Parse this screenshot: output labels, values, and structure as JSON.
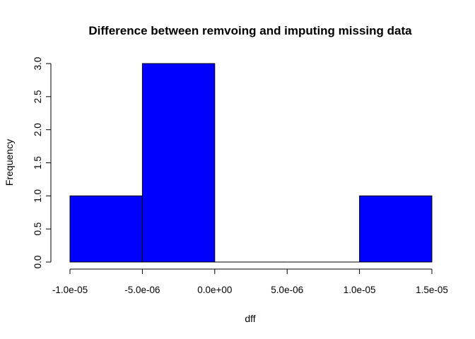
{
  "chart_data": {
    "type": "bar",
    "title": "Difference between remvoing and imputing missing data",
    "xlabel": "dff",
    "ylabel": "Frequency",
    "bar_color": "#0000ff",
    "bins": [
      {
        "x0": -1e-05,
        "x1": -5e-06,
        "count": 1
      },
      {
        "x0": -5e-06,
        "x1": 0.0,
        "count": 3
      },
      {
        "x0": 0.0,
        "x1": 5e-06,
        "count": 0
      },
      {
        "x0": 5e-06,
        "x1": 1e-05,
        "count": 0
      },
      {
        "x0": 1e-05,
        "x1": 1.5e-05,
        "count": 1
      }
    ],
    "xlim": [
      -1e-05,
      1.5e-05
    ],
    "ylim": [
      0,
      3
    ],
    "x_ticks": [
      {
        "value": -1e-05,
        "label": "-1.0e-05"
      },
      {
        "value": -5e-06,
        "label": "-5.0e-06"
      },
      {
        "value": 0.0,
        "label": "0.0e+00"
      },
      {
        "value": 5e-06,
        "label": "5.0e-06"
      },
      {
        "value": 1e-05,
        "label": "1.0e-05"
      },
      {
        "value": 1.5e-05,
        "label": "1.5e-05"
      }
    ],
    "y_ticks": [
      {
        "value": 0,
        "label": "0.0"
      },
      {
        "value": 0.5,
        "label": "0.5"
      },
      {
        "value": 1,
        "label": "1.0"
      },
      {
        "value": 1.5,
        "label": "1.5"
      },
      {
        "value": 2,
        "label": "2.0"
      },
      {
        "value": 2.5,
        "label": "2.5"
      },
      {
        "value": 3,
        "label": "3.0"
      }
    ],
    "grid": false,
    "legend": "none"
  }
}
